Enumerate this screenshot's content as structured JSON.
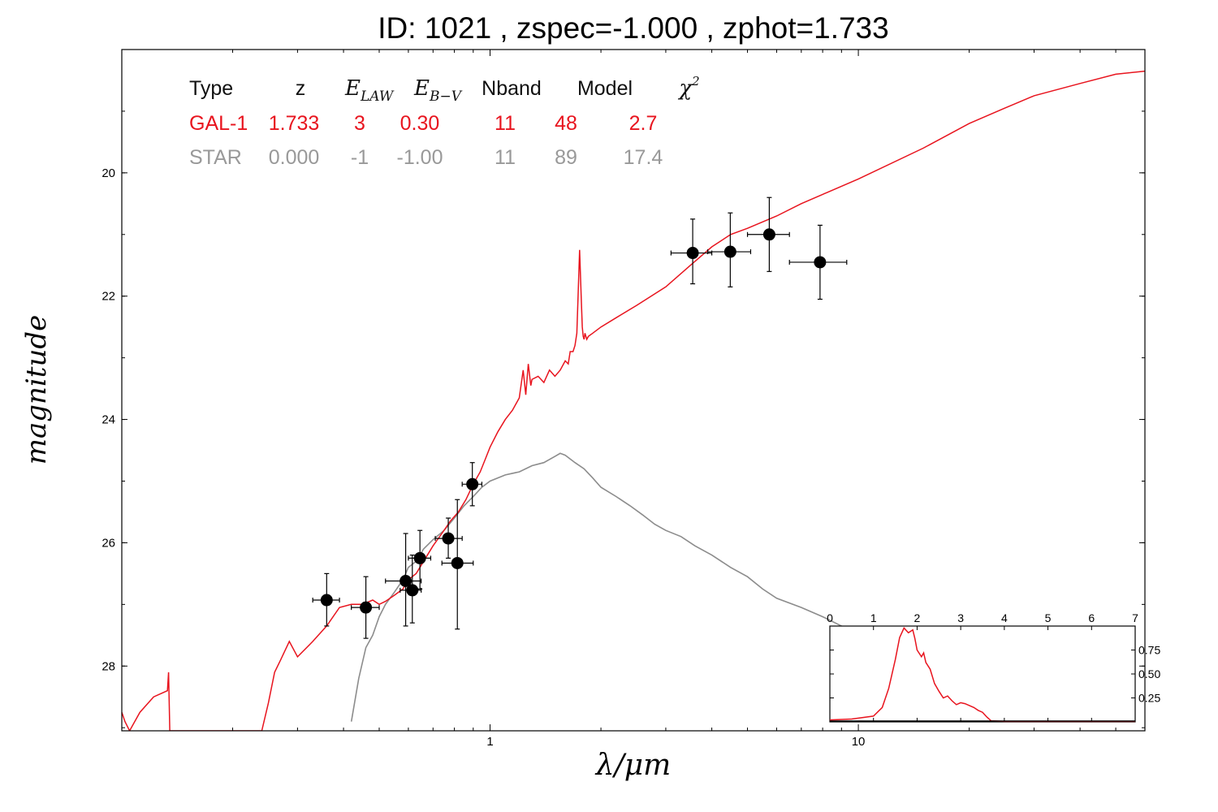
{
  "title": "ID:  1021  , zspec=-1.000 , zphot=1.733",
  "chart_data": [
    {
      "type": "scatter",
      "xlabel": "λ/μm",
      "ylabel": "magnitude",
      "x_scale": "log",
      "xlim": [
        0.1,
        60
      ],
      "ylim": [
        29.05,
        18.0
      ],
      "x_ticks": [
        "1",
        "10"
      ],
      "y_ticks": [
        "20",
        "22",
        "24",
        "26",
        "28"
      ],
      "colors": {
        "galaxy": "#e8141e",
        "star": "#8c8c8c",
        "points": "#000000"
      },
      "summary_table": {
        "headers": [
          "Type",
          "z",
          "E_LAW",
          "E_B-V",
          "Nband",
          "Model",
          "χ²"
        ],
        "rows": [
          {
            "color": "#e8141e",
            "cells": [
              "GAL-1",
              "1.733",
              "3",
              "0.30",
              "11",
              "48",
              "2.7"
            ]
          },
          {
            "color": "#999999",
            "cells": [
              "STAR",
              "0.000",
              "-1",
              "-1.00",
              "11",
              "89",
              "17.4"
            ]
          }
        ]
      },
      "points": [
        {
          "x": 0.36,
          "y": 26.93,
          "xerr": [
            0.33,
            0.39
          ],
          "yerr": [
            26.5,
            27.35
          ]
        },
        {
          "x": 0.46,
          "y": 27.05,
          "xerr": [
            0.42,
            0.5
          ],
          "yerr": [
            26.55,
            27.55
          ]
        },
        {
          "x": 0.59,
          "y": 26.62,
          "xerr": [
            0.52,
            0.65
          ],
          "yerr": [
            25.85,
            27.35
          ]
        },
        {
          "x": 0.615,
          "y": 26.77,
          "xerr": [
            0.57,
            0.65
          ],
          "yerr": [
            26.2,
            27.3
          ]
        },
        {
          "x": 0.645,
          "y": 26.25,
          "xerr": [
            0.6,
            0.69
          ],
          "yerr": [
            25.8,
            26.75
          ]
        },
        {
          "x": 0.77,
          "y": 25.93,
          "xerr": [
            0.71,
            0.84
          ],
          "yerr": [
            25.6,
            26.25
          ]
        },
        {
          "x": 0.815,
          "y": 26.33,
          "xerr": [
            0.74,
            0.9
          ],
          "yerr": [
            25.3,
            27.4
          ]
        },
        {
          "x": 0.895,
          "y": 25.05,
          "xerr": [
            0.84,
            0.95
          ],
          "yerr": [
            24.7,
            25.4
          ]
        },
        {
          "x": 3.55,
          "y": 21.3,
          "xerr": [
            3.1,
            4.0
          ],
          "yerr": [
            20.75,
            21.8
          ]
        },
        {
          "x": 4.49,
          "y": 21.28,
          "xerr": [
            3.9,
            5.1
          ],
          "yerr": [
            20.65,
            21.85
          ]
        },
        {
          "x": 5.73,
          "y": 21.0,
          "xerr": [
            5.0,
            6.5
          ],
          "yerr": [
            20.4,
            21.6
          ]
        },
        {
          "x": 7.87,
          "y": 21.45,
          "xerr": [
            6.5,
            9.3
          ],
          "yerr": [
            20.85,
            22.05
          ]
        }
      ],
      "series": [
        {
          "name": "GAL-1",
          "color": "#e8141e",
          "x": [
            0.1,
            0.102,
            0.105,
            0.112,
            0.122,
            0.133,
            0.134,
            0.135,
            0.14,
            0.15,
            0.165,
            0.175,
            0.187,
            0.2,
            0.22,
            0.24,
            0.25,
            0.26,
            0.27,
            0.285,
            0.3,
            0.33,
            0.36,
            0.39,
            0.42,
            0.45,
            0.48,
            0.5,
            0.52,
            0.55,
            0.58,
            0.6,
            0.63,
            0.66,
            0.7,
            0.74,
            0.78,
            0.82,
            0.86,
            0.9,
            0.94,
            0.97,
            1.0,
            1.05,
            1.1,
            1.15,
            1.2,
            1.23,
            1.25,
            1.27,
            1.29,
            1.3,
            1.35,
            1.4,
            1.45,
            1.5,
            1.55,
            1.6,
            1.63,
            1.65,
            1.68,
            1.7,
            1.72,
            1.75,
            1.77,
            1.78,
            1.79,
            1.8,
            1.81,
            1.83,
            1.85,
            1.9,
            2.0,
            2.2,
            2.5,
            3.0,
            3.5,
            4.0,
            4.5,
            5.0,
            6.0,
            7.0,
            8.0,
            10.0,
            15.0,
            20.0,
            25.0,
            30.0,
            40.0,
            50.0,
            60.0
          ],
          "y": [
            28.75,
            28.9,
            29.05,
            28.75,
            28.5,
            28.4,
            28.1,
            29.05,
            29.05,
            29.05,
            29.05,
            29.05,
            29.05,
            29.05,
            29.05,
            29.05,
            28.6,
            28.1,
            27.9,
            27.6,
            27.85,
            27.6,
            27.35,
            27.05,
            27.0,
            27.0,
            26.93,
            27.0,
            26.95,
            26.85,
            26.75,
            26.6,
            26.5,
            26.3,
            26.05,
            25.85,
            25.65,
            25.5,
            25.3,
            25.05,
            24.85,
            24.65,
            24.45,
            24.2,
            24.0,
            23.85,
            23.65,
            23.2,
            23.6,
            23.1,
            23.45,
            23.35,
            23.3,
            23.4,
            23.2,
            23.3,
            23.2,
            23.05,
            23.1,
            22.9,
            22.9,
            22.8,
            22.6,
            21.25,
            22.1,
            22.5,
            22.65,
            22.7,
            22.6,
            22.7,
            22.65,
            22.6,
            22.5,
            22.35,
            22.15,
            21.85,
            21.5,
            21.2,
            21.0,
            20.9,
            20.7,
            20.5,
            20.35,
            20.1,
            19.6,
            19.2,
            18.95,
            18.75,
            18.55,
            18.4,
            18.35
          ]
        },
        {
          "name": "STAR",
          "color": "#8c8c8c",
          "x": [
            0.42,
            0.44,
            0.46,
            0.48,
            0.5,
            0.52,
            0.55,
            0.58,
            0.6,
            0.63,
            0.66,
            0.7,
            0.75,
            0.8,
            0.85,
            0.9,
            0.95,
            1.0,
            1.1,
            1.2,
            1.3,
            1.4,
            1.5,
            1.55,
            1.6,
            1.7,
            1.8,
            1.9,
            2.0,
            2.2,
            2.4,
            2.6,
            2.8,
            3.0,
            3.3,
            3.6,
            4.0,
            4.5,
            5.0,
            5.5,
            6.0,
            7.0,
            8.0,
            9.0,
            10.0,
            11.0,
            12.0
          ],
          "y": [
            28.9,
            28.2,
            27.7,
            27.5,
            27.2,
            27.0,
            26.8,
            26.6,
            26.4,
            26.3,
            26.1,
            25.95,
            25.8,
            25.6,
            25.4,
            25.25,
            25.1,
            25.0,
            24.9,
            24.85,
            24.75,
            24.7,
            24.6,
            24.55,
            24.58,
            24.7,
            24.8,
            24.95,
            25.1,
            25.25,
            25.4,
            25.55,
            25.7,
            25.8,
            25.9,
            26.05,
            26.2,
            26.4,
            26.55,
            26.75,
            26.9,
            27.05,
            27.2,
            27.35,
            27.5,
            27.7,
            27.85
          ]
        }
      ]
    },
    {
      "type": "line",
      "name": "inset",
      "xlim": [
        0,
        7
      ],
      "ylim": [
        0,
        1.0
      ],
      "x_ticks": [
        "0",
        "1",
        "2",
        "3",
        "4",
        "5",
        "6",
        "7"
      ],
      "y_ticks": [
        "0.25",
        "0.50",
        "0.75"
      ],
      "series": [
        {
          "color": "#e8141e",
          "x": [
            0,
            0.5,
            1.0,
            1.2,
            1.35,
            1.5,
            1.6,
            1.7,
            1.8,
            1.9,
            1.95,
            2.0,
            2.1,
            2.15,
            2.2,
            2.3,
            2.4,
            2.5,
            2.6,
            2.7,
            2.8,
            2.9,
            3.0,
            3.1,
            3.2,
            3.3,
            3.4,
            3.5,
            3.6,
            3.7,
            4.0,
            5.0,
            6.0,
            7.0
          ],
          "y": [
            0.02,
            0.03,
            0.06,
            0.15,
            0.35,
            0.65,
            0.88,
            0.98,
            0.93,
            0.96,
            0.87,
            0.75,
            0.68,
            0.72,
            0.62,
            0.55,
            0.4,
            0.32,
            0.25,
            0.27,
            0.22,
            0.18,
            0.2,
            0.19,
            0.17,
            0.15,
            0.12,
            0.1,
            0.05,
            0.01,
            0.005,
            0.005,
            0.005,
            0.005
          ]
        }
      ]
    }
  ]
}
